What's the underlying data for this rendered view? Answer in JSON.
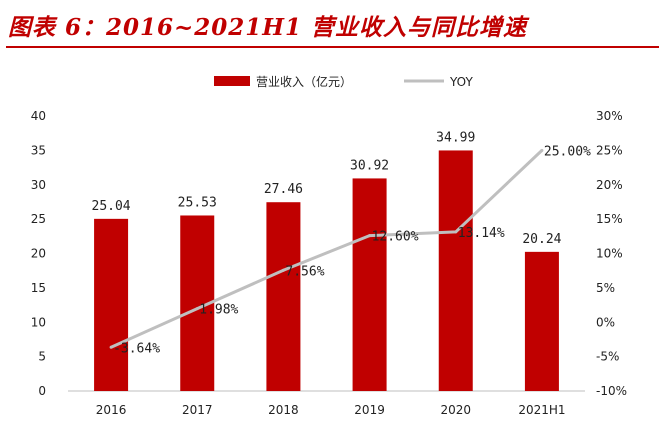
{
  "header": {
    "title": "图表 6：2016~2021H1 营业收入与同比增速"
  },
  "watermark": "",
  "colors": {
    "bar": "#c00000",
    "line": "#bfbfbf",
    "title": "#c00000"
  },
  "chart_data": {
    "type": "bar",
    "categories": [
      "2016",
      "2017",
      "2018",
      "2019",
      "2020",
      "2021H1"
    ],
    "series": [
      {
        "name": "营业收入（亿元）",
        "type": "bar",
        "axis": "left",
        "values": [
          25.04,
          25.53,
          27.46,
          30.92,
          34.99,
          20.24
        ],
        "labels": [
          "25.04",
          "25.53",
          "27.46",
          "30.92",
          "34.99",
          "20.24"
        ]
      },
      {
        "name": "YOY",
        "type": "line",
        "axis": "right",
        "values": [
          -3.64,
          1.98,
          7.56,
          12.6,
          13.14,
          25.0
        ],
        "labels": [
          "-3.64%",
          "1.98%",
          "7.56%",
          "12.60%",
          "13.14%",
          "25.00%"
        ]
      }
    ],
    "y_left": {
      "ylim": [
        0,
        40
      ],
      "ticks": [
        "0",
        "5",
        "10",
        "15",
        "20",
        "25",
        "30",
        "35",
        "40"
      ]
    },
    "y_right": {
      "ylim": [
        -10,
        30
      ],
      "ticks": [
        "-10%",
        "-5%",
        "0%",
        "5%",
        "10%",
        "15%",
        "20%",
        "25%",
        "30%"
      ]
    },
    "legend_position": "top-center",
    "grid": false
  }
}
